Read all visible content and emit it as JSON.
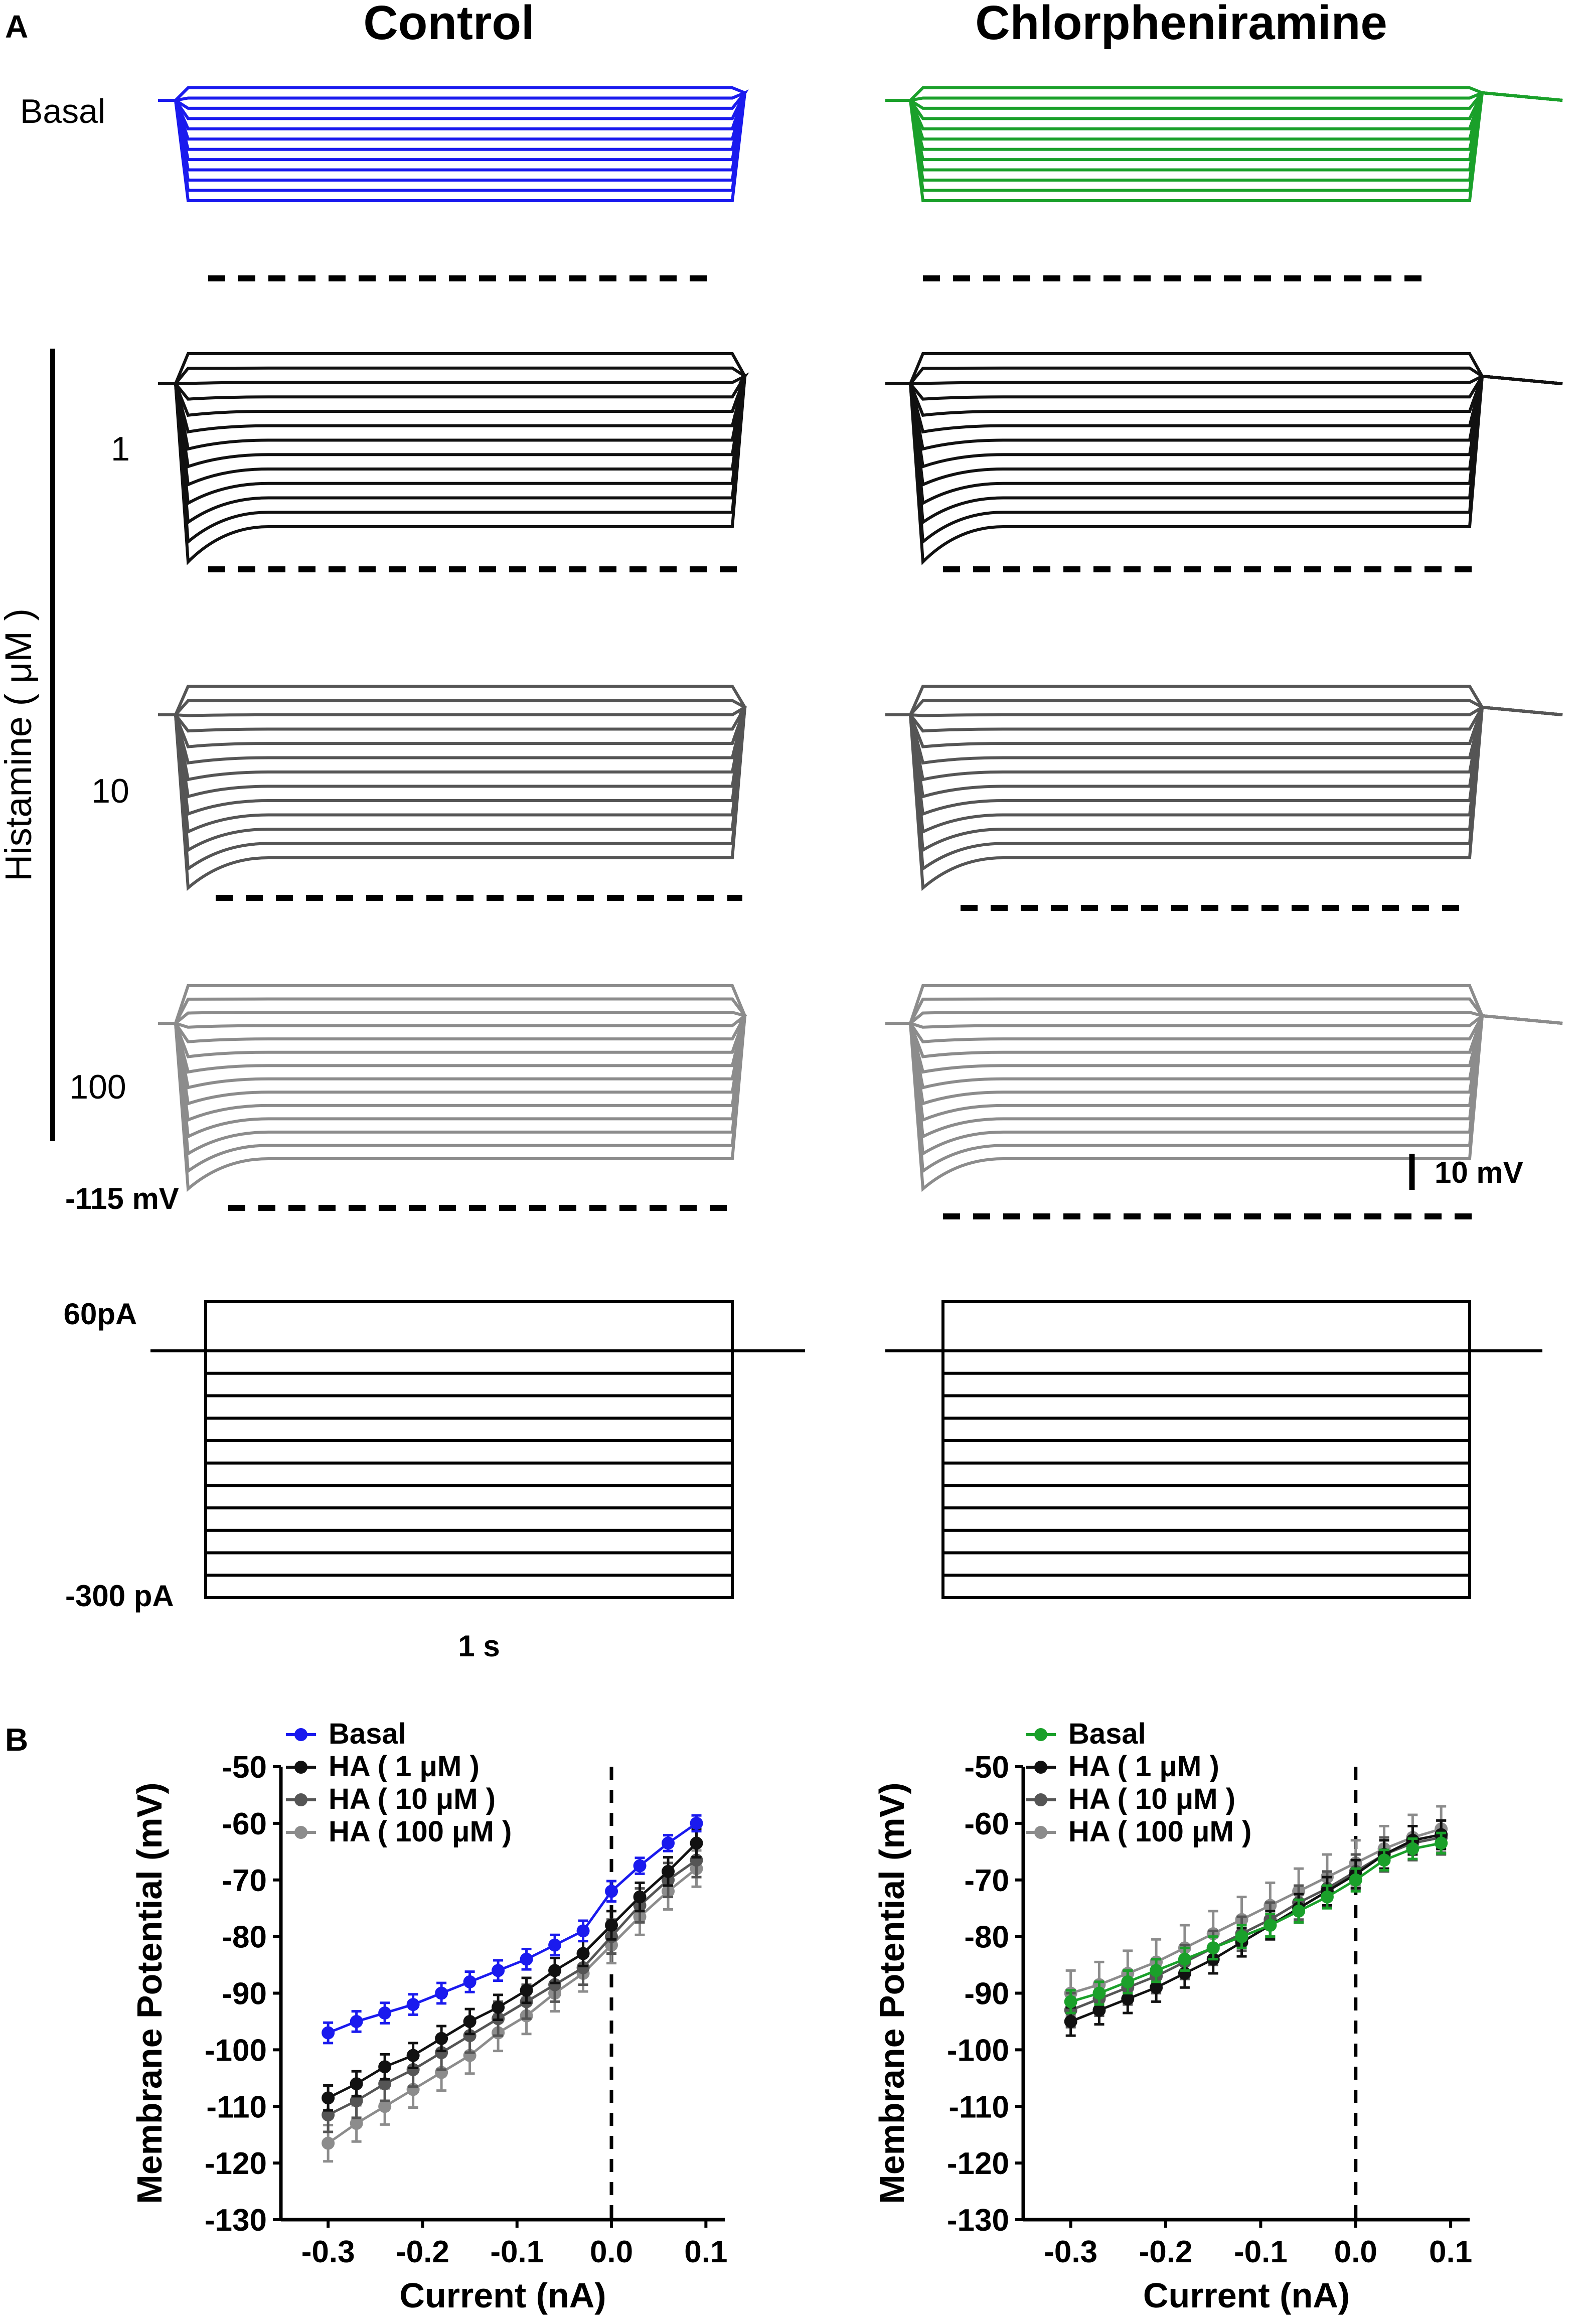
{
  "panel_labels": {
    "a": "A",
    "b": "B"
  },
  "conditions": [
    {
      "key": "control",
      "title": "Control",
      "basal_color": "#1a1aee"
    },
    {
      "key": "chlorpheniramine",
      "title": "Chlorpheniramine",
      "basal_color": "#1aa02a"
    }
  ],
  "row_labels": {
    "basal": "Basal",
    "histamine_axis": "Histamine ( μM )",
    "doses": [
      "1",
      "10",
      "100"
    ]
  },
  "trace_colors": {
    "ha1": "#111111",
    "ha10": "#555555",
    "ha100": "#8c8c8c"
  },
  "scale_bar": {
    "voltage_label": "10 mV",
    "baseline_label": "-115 mV",
    "time_label": "1 s"
  },
  "protocol": {
    "top_label": "60pA",
    "bottom_label": "-300 pA",
    "steps": 12
  },
  "chart_data": [
    {
      "type": "line",
      "title": "Control",
      "xlabel": "Current (nA)",
      "ylabel": "Membrane Potential (mV)",
      "xlim": [
        -0.35,
        0.12
      ],
      "ylim": [
        -130,
        -50
      ],
      "x_ticks": [
        "-0.3",
        "-0.2",
        "-0.1",
        "0.0",
        "0.1"
      ],
      "y_ticks": [
        "-50",
        "-60",
        "-70",
        "-80",
        "-90",
        "-100",
        "-110",
        "-120",
        "-130"
      ],
      "x": [
        -0.3,
        -0.27,
        -0.24,
        -0.21,
        -0.18,
        -0.15,
        -0.12,
        -0.09,
        -0.06,
        -0.03,
        0.0,
        0.03,
        0.06,
        0.09
      ],
      "series": [
        {
          "name": "Basal",
          "color": "#1a1aee",
          "values": [
            -97,
            -95,
            -93.5,
            -92,
            -90,
            -88,
            -86,
            -84,
            -81.5,
            -79,
            -72,
            -67.5,
            -63.5,
            -60
          ],
          "errors": [
            1.8,
            1.8,
            1.8,
            1.8,
            1.8,
            1.8,
            1.8,
            1.8,
            1.8,
            1.8,
            1.8,
            1.4,
            1.4,
            1.4
          ]
        },
        {
          "name": "HA ( 1 μM )",
          "color": "#111111",
          "values": [
            -108.5,
            -106,
            -103,
            -101,
            -98,
            -95,
            -92.5,
            -89.5,
            -86,
            -83,
            -78,
            -73,
            -68.5,
            -63.5
          ],
          "errors": [
            2.2,
            2.2,
            2.2,
            2.2,
            2.2,
            2.2,
            2.2,
            2.2,
            2.2,
            2.2,
            2.5,
            2.5,
            2.5,
            2.5
          ]
        },
        {
          "name": "HA ( 10 μM )",
          "color": "#555555",
          "values": [
            -111.5,
            -109,
            -106,
            -103.5,
            -100.5,
            -97.5,
            -94.5,
            -91.5,
            -88.5,
            -85.5,
            -80,
            -74.5,
            -70,
            -66.5
          ],
          "errors": [
            3,
            3,
            3,
            3,
            3,
            3,
            3,
            3,
            3,
            3,
            3,
            3,
            3,
            3
          ]
        },
        {
          "name": "HA ( 100 μM )",
          "color": "#8c8c8c",
          "values": [
            -116.5,
            -113,
            -110,
            -107,
            -104,
            -101,
            -97,
            -94,
            -90,
            -86.5,
            -81.5,
            -76.5,
            -72,
            -68
          ],
          "errors": [
            3.2,
            3.2,
            3.2,
            3.2,
            3.2,
            3.2,
            3.2,
            3.2,
            3.2,
            3.2,
            3.2,
            3.2,
            3.2,
            3.2
          ]
        }
      ]
    },
    {
      "type": "line",
      "title": "Chlorpheniramine",
      "xlabel": "Current (nA)",
      "ylabel": "Membrane Potential (mV)",
      "xlim": [
        -0.35,
        0.12
      ],
      "ylim": [
        -130,
        -50
      ],
      "x_ticks": [
        "-0.3",
        "-0.2",
        "-0.1",
        "0.0",
        "0.1"
      ],
      "y_ticks": [
        "-50",
        "-60",
        "-70",
        "-80",
        "-90",
        "-100",
        "-110",
        "-120",
        "-130"
      ],
      "x": [
        -0.3,
        -0.27,
        -0.24,
        -0.21,
        -0.18,
        -0.15,
        -0.12,
        -0.09,
        -0.06,
        -0.03,
        0.0,
        0.03,
        0.06,
        0.09
      ],
      "series": [
        {
          "name": "Basal",
          "color": "#1aa02a",
          "values": [
            -91.5,
            -90,
            -88,
            -86,
            -84,
            -82,
            -80,
            -78,
            -75.5,
            -73,
            -70,
            -66.5,
            -64.5,
            -63.5
          ],
          "errors": [
            2,
            2,
            2,
            2,
            2,
            2,
            2,
            2,
            2,
            2,
            2,
            1.8,
            1.8,
            1.8
          ]
        },
        {
          "name": "HA ( 1 μM )",
          "color": "#111111",
          "values": [
            -95,
            -93,
            -91,
            -89,
            -86.5,
            -84,
            -81,
            -78,
            -75,
            -72,
            -69,
            -65.5,
            -63,
            -62
          ],
          "errors": [
            2.5,
            2.5,
            2.5,
            2.5,
            2.5,
            2.5,
            2.5,
            2.5,
            2.5,
            2.5,
            2.5,
            2.5,
            2.5,
            2.5
          ]
        },
        {
          "name": "HA ( 10 μM )",
          "color": "#555555",
          "values": [
            -93,
            -91,
            -89,
            -87,
            -84.5,
            -82,
            -79.5,
            -77,
            -74,
            -71.5,
            -68.5,
            -65.5,
            -63.5,
            -62.5
          ],
          "errors": [
            3,
            3,
            3,
            3,
            3,
            3,
            3,
            3,
            3,
            3,
            3,
            3,
            3,
            3
          ]
        },
        {
          "name": "HA ( 100 μM )",
          "color": "#8c8c8c",
          "values": [
            -90,
            -88.5,
            -86.5,
            -84.5,
            -82,
            -79.5,
            -77,
            -74.5,
            -72,
            -69.5,
            -67,
            -64.5,
            -62.5,
            -61
          ],
          "errors": [
            4,
            4,
            4,
            4,
            4,
            4,
            4,
            4,
            4,
            4,
            4,
            4,
            4,
            4
          ]
        }
      ]
    }
  ]
}
